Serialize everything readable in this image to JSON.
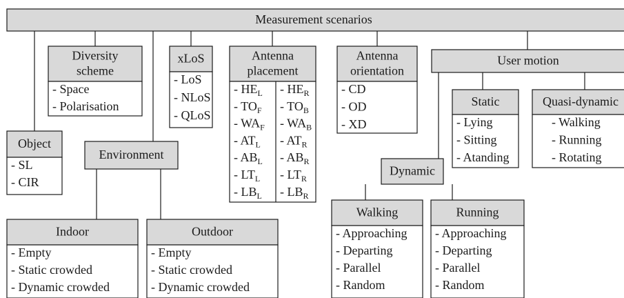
{
  "title": "Measurement scenarios",
  "groups": [
    {
      "header": [
        "Object"
      ],
      "items": [
        {
          "text": "- SL"
        },
        {
          "text": "- CIR"
        }
      ]
    },
    {
      "header": [
        "Diversity",
        "scheme"
      ],
      "items": [
        {
          "text": "- Space"
        },
        {
          "text": "- Polarisation"
        }
      ]
    },
    {
      "header": [
        "xLoS"
      ],
      "items": [
        {
          "text": "- LoS"
        },
        {
          "text": "- NLoS"
        },
        {
          "text": "- QLoS"
        }
      ]
    },
    {
      "header": [
        "Antenna",
        "placement"
      ],
      "columns": [
        [
          {
            "text": "- HE",
            "sub": "L"
          },
          {
            "text": "- TO",
            "sub": "F"
          },
          {
            "text": "- WA",
            "sub": "F"
          },
          {
            "text": "- AT",
            "sub": "L"
          },
          {
            "text": "- AB",
            "sub": "L"
          },
          {
            "text": "- LT",
            "sub": "L"
          },
          {
            "text": "- LB",
            "sub": "L"
          }
        ],
        [
          {
            "text": "- HE",
            "sub": "R"
          },
          {
            "text": "- TO",
            "sub": "B"
          },
          {
            "text": "- WA",
            "sub": "B"
          },
          {
            "text": "- AT",
            "sub": "R"
          },
          {
            "text": "- AB",
            "sub": "R"
          },
          {
            "text": "- LT",
            "sub": "R"
          },
          {
            "text": "- LB",
            "sub": "R"
          }
        ]
      ]
    },
    {
      "header": [
        "Antenna",
        "orientation"
      ],
      "items": [
        {
          "text": "- CD"
        },
        {
          "text": "- OD"
        },
        {
          "text": "- XD"
        }
      ]
    },
    {
      "header": [
        "User motion"
      ],
      "items": []
    },
    {
      "header": [
        "Static"
      ],
      "items": [
        {
          "text": "- Lying"
        },
        {
          "text": "- Sitting"
        },
        {
          "text": "- Atanding"
        }
      ]
    },
    {
      "header": [
        "Quasi-dynamic"
      ],
      "items": [
        {
          "text": "- Walking"
        },
        {
          "text": "- Running"
        },
        {
          "text": "- Rotating"
        }
      ]
    },
    {
      "header": [
        "Environment"
      ],
      "items": []
    },
    {
      "header": [
        "Indoor"
      ],
      "items": [
        {
          "text": "- Empty"
        },
        {
          "text": "- Static crowded"
        },
        {
          "text": "- Dynamic crowded"
        }
      ]
    },
    {
      "header": [
        "Outdoor"
      ],
      "items": [
        {
          "text": "- Empty"
        },
        {
          "text": "- Static crowded"
        },
        {
          "text": "- Dynamic crowded"
        }
      ]
    },
    {
      "header": [
        "Dynamic"
      ],
      "items": []
    },
    {
      "header": [
        "Walking"
      ],
      "items": [
        {
          "text": "- Approaching"
        },
        {
          "text": "- Departing"
        },
        {
          "text": "- Parallel"
        },
        {
          "text": "- Random"
        }
      ]
    },
    {
      "header": [
        "Running"
      ],
      "items": [
        {
          "text": "- Approaching"
        },
        {
          "text": "- Departing"
        },
        {
          "text": "- Parallel"
        },
        {
          "text": "- Random"
        }
      ]
    }
  ]
}
